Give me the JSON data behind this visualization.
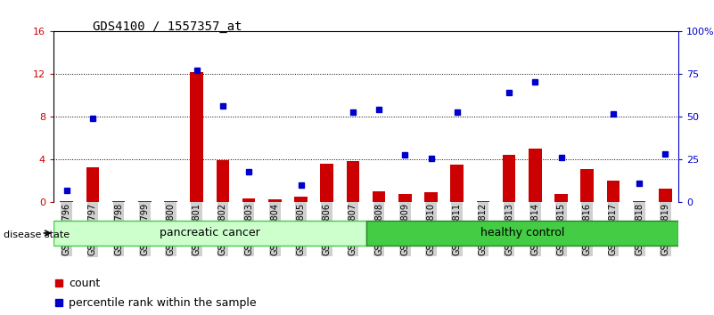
{
  "title": "GDS4100 / 1557357_at",
  "categories": [
    "GSM356796",
    "GSM356797",
    "GSM356798",
    "GSM356799",
    "GSM356800",
    "GSM356801",
    "GSM356802",
    "GSM356803",
    "GSM356804",
    "GSM356805",
    "GSM356806",
    "GSM356807",
    "GSM356808",
    "GSM356809",
    "GSM356810",
    "GSM356811",
    "GSM356812",
    "GSM356813",
    "GSM356814",
    "GSM356815",
    "GSM356816",
    "GSM356817",
    "GSM356818",
    "GSM356819"
  ],
  "count_values": [
    0.05,
    3.2,
    0.05,
    0.05,
    0.05,
    12.2,
    3.9,
    0.3,
    0.2,
    0.5,
    3.6,
    3.8,
    1.0,
    0.7,
    0.9,
    3.5,
    0.05,
    4.4,
    5.0,
    0.7,
    3.1,
    2.0,
    0.05,
    1.2
  ],
  "percentile_values": [
    6.4,
    49.0,
    null,
    null,
    null,
    77.0,
    56.5,
    17.5,
    null,
    9.5,
    null,
    52.5,
    54.0,
    27.5,
    25.5,
    52.5,
    null,
    64.0,
    70.5,
    26.0,
    null,
    51.5,
    11.0,
    28.0
  ],
  "bar_color": "#cc0000",
  "dot_color": "#0000cc",
  "ylim_left": [
    0,
    16
  ],
  "ylim_right": [
    0,
    100
  ],
  "yticks_left": [
    0,
    4,
    8,
    12,
    16
  ],
  "yticks_right": [
    0,
    25,
    50,
    75,
    100
  ],
  "ytick_labels_right": [
    "0",
    "25",
    "50",
    "75",
    "100%"
  ],
  "groups": [
    {
      "label": "pancreatic cancer",
      "start": 0,
      "end": 11,
      "color": "#ccffcc",
      "edge_color": "#44cc44"
    },
    {
      "label": "healthy control",
      "start": 12,
      "end": 23,
      "color": "#44cc44",
      "edge_color": "#228822"
    }
  ],
  "disease_state_label": "disease state",
  "legend_count_label": "count",
  "legend_percentile_label": "percentile rank within the sample",
  "background_color": "#ffffff",
  "plot_bg_color": "#ffffff",
  "title_fontsize": 10,
  "tick_fontsize": 7,
  "bar_width": 0.5,
  "ticklabel_bg_color": "#d0d0d0"
}
